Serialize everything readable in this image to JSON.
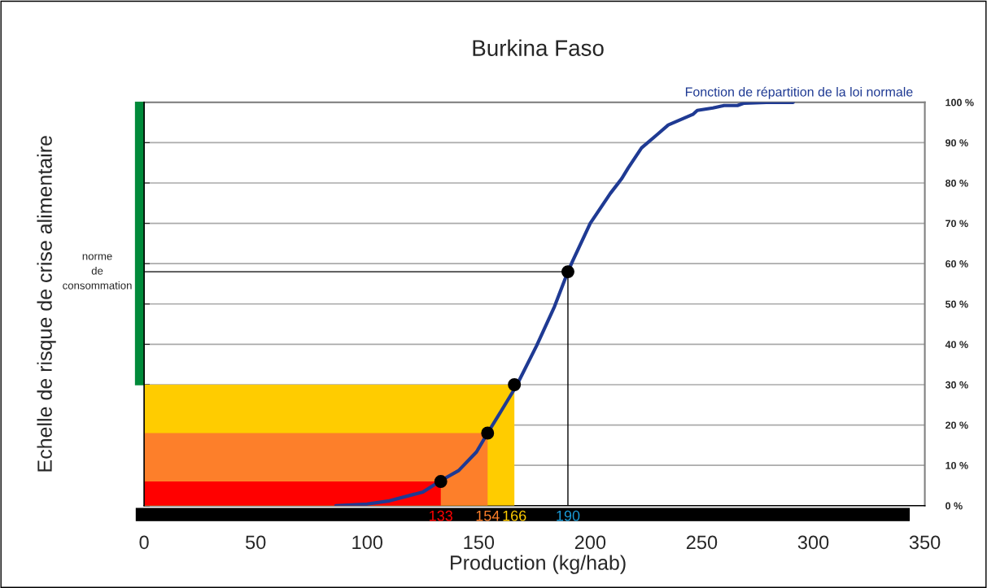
{
  "chart_data": {
    "type": "line",
    "title": "Burkina Faso",
    "xlabel": "Production (kg/hab)",
    "ylabel": "Echelle de risque de crise alimentaire",
    "xlim": [
      0,
      350
    ],
    "xticks": [
      0,
      50,
      100,
      150,
      200,
      250,
      300,
      350
    ],
    "ylim": [
      0,
      100
    ],
    "yticks": [
      {
        "value": 0,
        "label": "0 %"
      },
      {
        "value": 10,
        "label": "10 %"
      },
      {
        "value": 20,
        "label": "20 %"
      },
      {
        "value": 30,
        "label": "30 %"
      },
      {
        "value": 40,
        "label": "40 %"
      },
      {
        "value": 50,
        "label": "50 %"
      },
      {
        "value": 60,
        "label": "60 %"
      },
      {
        "value": 70,
        "label": "70 %"
      },
      {
        "value": 80,
        "label": "80 %"
      },
      {
        "value": 90,
        "label": "90 %"
      },
      {
        "value": 100,
        "label": "100 %"
      }
    ],
    "grid": "y",
    "series": [
      {
        "type": "area",
        "color": "#ffcc00",
        "x": [
          0,
          166
        ],
        "values": [
          30,
          30
        ]
      },
      {
        "type": "area",
        "color": "#fd7f2a",
        "x": [
          0,
          154
        ],
        "values": [
          18,
          18
        ]
      },
      {
        "type": "area",
        "color": "#ff0000",
        "x": [
          0,
          133
        ],
        "values": [
          6,
          6
        ]
      },
      {
        "name": "Fonction de répartition de la loi normale",
        "color": "#1f3a93",
        "x": [
          86,
          100,
          110,
          125,
          133,
          141,
          149,
          154,
          160,
          167,
          176,
          184,
          190,
          192,
          200,
          209,
          214,
          217,
          223,
          230,
          235,
          246,
          248,
          255,
          260,
          266,
          269,
          279,
          291
        ],
        "values": [
          0,
          0.4,
          1.2,
          3.4,
          6.2,
          8.7,
          13.3,
          18,
          23.4,
          29.8,
          39.7,
          49.4,
          58,
          60.5,
          70,
          77.4,
          81,
          83.7,
          88.7,
          92,
          94.4,
          97,
          98,
          98.6,
          99.2,
          99.2,
          99.8,
          100,
          100
        ]
      },
      {
        "type": "scatter",
        "color": "#000000",
        "marker": "circle",
        "x": [
          133,
          154,
          166,
          190
        ],
        "values": [
          6,
          18,
          30,
          58
        ]
      }
    ],
    "ref_lines": [
      {
        "axis": "y",
        "value": 58,
        "color": "#000000"
      },
      {
        "axis": "x",
        "value": 190,
        "color": "#000000"
      }
    ],
    "annotations": [
      "norme\nde\nconsommation",
      {
        "text": "133",
        "x": 133,
        "y": 0
      },
      {
        "text": "154",
        "x": 154,
        "y": 0
      },
      {
        "text": "166",
        "x": 166,
        "y": 0
      },
      {
        "text": "190",
        "x": 190,
        "y": 0
      }
    ],
    "legend": "top right"
  }
}
